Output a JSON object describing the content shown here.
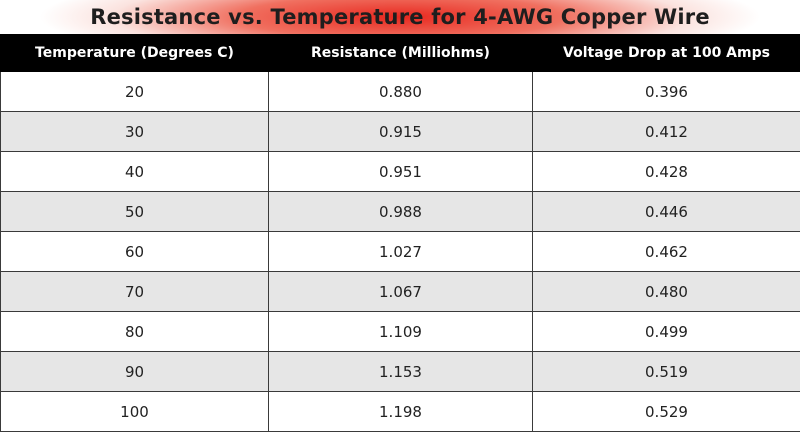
{
  "title": "Resistance vs. Temperature for 4-AWG Copper Wire",
  "table": {
    "header": [
      "Temperature (Degrees C)",
      "Resistance (Milliohms)",
      "Voltage Drop at 100 Amps"
    ],
    "rows": [
      [
        "20",
        "0.880",
        "0.396"
      ],
      [
        "30",
        "0.915",
        "0.412"
      ],
      [
        "40",
        "0.951",
        "0.428"
      ],
      [
        "50",
        "0.988",
        "0.446"
      ],
      [
        "60",
        "1.027",
        "0.462"
      ],
      [
        "70",
        "1.067",
        "0.480"
      ],
      [
        "80",
        "1.109",
        "0.499"
      ],
      [
        "90",
        "1.153",
        "0.519"
      ],
      [
        "100",
        "1.198",
        "0.529"
      ]
    ]
  }
}
